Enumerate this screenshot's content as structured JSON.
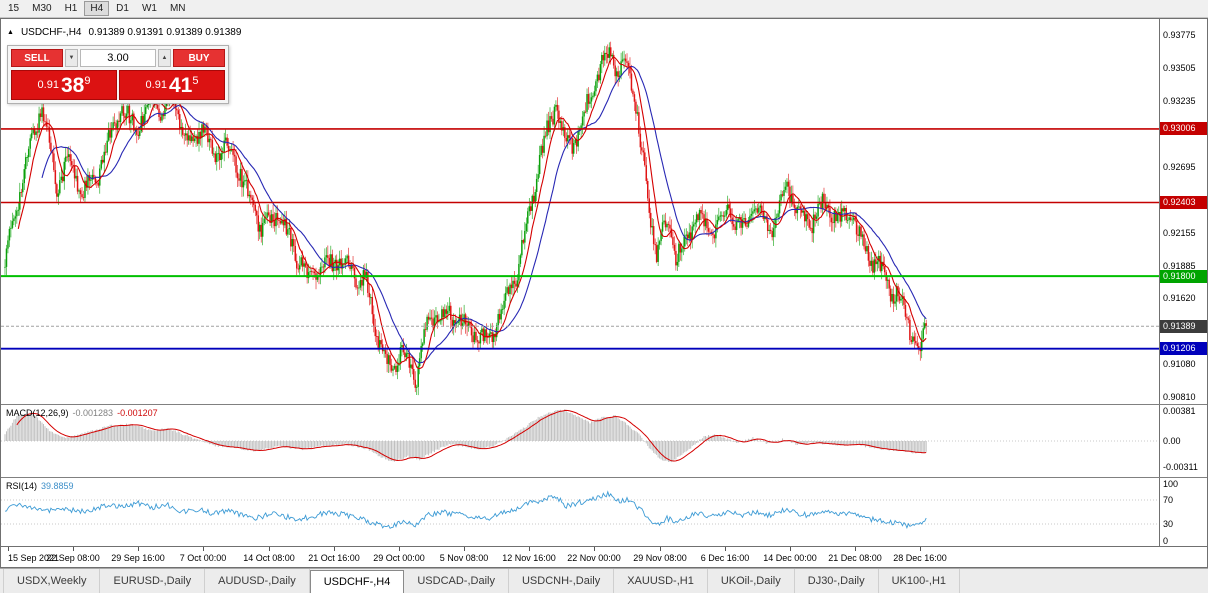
{
  "toolbar": {
    "timeframes": [
      {
        "label": "15",
        "active": false
      },
      {
        "label": "M30",
        "active": false
      },
      {
        "label": "H1",
        "active": false
      },
      {
        "label": "H4",
        "active": true
      },
      {
        "label": "D1",
        "active": false
      },
      {
        "label": "W1",
        "active": false
      },
      {
        "label": "MN",
        "active": false
      }
    ]
  },
  "chart_header": {
    "symbol_title": "USDCHF-,H4",
    "ohlc": "0.91389 0.91391 0.91389 0.91389"
  },
  "trade_panel": {
    "sell_label": "SELL",
    "buy_label": "BUY",
    "volume": "3.00",
    "sell_price_main": "0.91",
    "sell_price_pips": "38",
    "sell_price_sup": "9",
    "buy_price_main": "0.91",
    "buy_price_pips": "41",
    "buy_price_sup": "5"
  },
  "macd_panel": {
    "name": "MACD(12,26,9)",
    "main_value": "-0.001283",
    "signal_value": "-0.001207"
  },
  "rsi_panel": {
    "name": "RSI(14)",
    "value": "39.8859"
  },
  "tabs": [
    {
      "label": "USDX,Weekly",
      "active": false
    },
    {
      "label": "EURUSD-,Daily",
      "active": false
    },
    {
      "label": "AUDUSD-,Daily",
      "active": false
    },
    {
      "label": "USDCHF-,H4",
      "active": true
    },
    {
      "label": "USDCAD-,Daily",
      "active": false
    },
    {
      "label": "USDCNH-,Daily",
      "active": false
    },
    {
      "label": "XAUUSD-,H1",
      "active": false
    },
    {
      "label": "UKOil-,Daily",
      "active": false
    },
    {
      "label": "DJ30-,Daily",
      "active": false
    },
    {
      "label": "UK100-,H1",
      "active": false
    }
  ],
  "chart_data": {
    "type": "candlestick",
    "symbol": "USDCHF-",
    "timeframe": "H4",
    "current_price": 0.91389,
    "bars": 623,
    "y_ticks": [
      "0.93775",
      "0.93505",
      "0.93235",
      "0.92695",
      "0.92155",
      "0.91885",
      "0.91620",
      "0.91080",
      "0.90810"
    ],
    "price_badges": [
      {
        "text": "0.93006",
        "bg": "#c40000"
      },
      {
        "text": "0.92403",
        "bg": "#c40000"
      },
      {
        "text": "0.91800",
        "bg": "#00a400"
      },
      {
        "text": "0.91389",
        "bg": "#3c3c3c"
      },
      {
        "text": "0.91206",
        "bg": "#0000bb"
      }
    ],
    "h_lines": [
      {
        "price": 0.93006,
        "color": "#c40000",
        "width": 1.6,
        "dash": ""
      },
      {
        "price": 0.92403,
        "color": "#c40000",
        "width": 1.6,
        "dash": ""
      },
      {
        "price": 0.918,
        "color": "#00c000",
        "width": 2,
        "dash": ""
      },
      {
        "price": 0.91206,
        "color": "#0000bb",
        "width": 1.8,
        "dash": ""
      },
      {
        "price": 0.91389,
        "color": "#a0a0a0",
        "width": 1,
        "dash": "3,2"
      }
    ],
    "x_labels": [
      {
        "bar": 2,
        "label": "15 Sep 2021"
      },
      {
        "bar": 46,
        "label": "22 Sep 08:00"
      },
      {
        "bar": 90,
        "label": "29 Sep 16:00"
      },
      {
        "bar": 134,
        "label": "7 Oct 00:00"
      },
      {
        "bar": 178,
        "label": "14 Oct 08:00"
      },
      {
        "bar": 222,
        "label": "21 Oct 16:00"
      },
      {
        "bar": 266,
        "label": "29 Oct 00:00"
      },
      {
        "bar": 310,
        "label": "5 Nov 08:00"
      },
      {
        "bar": 354,
        "label": "12 Nov 16:00"
      },
      {
        "bar": 398,
        "label": "22 Nov 00:00"
      },
      {
        "bar": 442,
        "label": "29 Nov 08:00"
      },
      {
        "bar": 486,
        "label": "6 Dec 16:00"
      },
      {
        "bar": 530,
        "label": "14 Dec 00:00"
      },
      {
        "bar": 574,
        "label": "21 Dec 08:00"
      },
      {
        "bar": 618,
        "label": "28 Dec 16:00"
      }
    ],
    "price_path": [
      [
        0,
        0.919
      ],
      [
        8,
        0.924
      ],
      [
        18,
        0.929
      ],
      [
        25,
        0.932
      ],
      [
        35,
        0.9255
      ],
      [
        42,
        0.9275
      ],
      [
        52,
        0.925
      ],
      [
        62,
        0.9258
      ],
      [
        69,
        0.929
      ],
      [
        79,
        0.9315
      ],
      [
        89,
        0.93
      ],
      [
        99,
        0.933
      ],
      [
        106,
        0.931
      ],
      [
        113,
        0.933
      ],
      [
        123,
        0.929
      ],
      [
        133,
        0.93
      ],
      [
        143,
        0.928
      ],
      [
        153,
        0.9285
      ],
      [
        163,
        0.925
      ],
      [
        173,
        0.922
      ],
      [
        184,
        0.923
      ],
      [
        194,
        0.9205
      ],
      [
        204,
        0.918
      ],
      [
        214,
        0.9185
      ],
      [
        224,
        0.9195
      ],
      [
        234,
        0.9185
      ],
      [
        244,
        0.9175
      ],
      [
        251,
        0.913
      ],
      [
        261,
        0.9102
      ],
      [
        268,
        0.9122
      ],
      [
        277,
        0.9094
      ],
      [
        285,
        0.914
      ],
      [
        295,
        0.915
      ],
      [
        305,
        0.9145
      ],
      [
        315,
        0.9135
      ],
      [
        325,
        0.9125
      ],
      [
        335,
        0.915
      ],
      [
        345,
        0.918
      ],
      [
        355,
        0.924
      ],
      [
        366,
        0.93
      ],
      [
        372,
        0.932
      ],
      [
        379,
        0.9285
      ],
      [
        386,
        0.9295
      ],
      [
        393,
        0.932
      ],
      [
        399,
        0.934
      ],
      [
        408,
        0.9365
      ],
      [
        414,
        0.9345
      ],
      [
        420,
        0.9355
      ],
      [
        427,
        0.931
      ],
      [
        433,
        0.925
      ],
      [
        440,
        0.92
      ],
      [
        447,
        0.9225
      ],
      [
        453,
        0.9195
      ],
      [
        460,
        0.921
      ],
      [
        467,
        0.923
      ],
      [
        477,
        0.9215
      ],
      [
        487,
        0.9235
      ],
      [
        497,
        0.922
      ],
      [
        507,
        0.9235
      ],
      [
        517,
        0.922
      ],
      [
        528,
        0.9255
      ],
      [
        534,
        0.9235
      ],
      [
        544,
        0.9225
      ],
      [
        554,
        0.924
      ],
      [
        565,
        0.9225
      ],
      [
        571,
        0.9235
      ],
      [
        578,
        0.921
      ],
      [
        585,
        0.9195
      ],
      [
        592,
        0.9185
      ],
      [
        598,
        0.917
      ],
      [
        605,
        0.916
      ],
      [
        612,
        0.9135
      ],
      [
        618,
        0.912
      ],
      [
        622,
        0.91389
      ]
    ],
    "macd": {
      "ticks": [
        "0.00381",
        "0.00",
        "-0.00311"
      ],
      "path": [
        [
          0,
          0.0008
        ],
        [
          8,
          0.003
        ],
        [
          18,
          0.0035
        ],
        [
          30,
          0.0012
        ],
        [
          40,
          0.0004
        ],
        [
          55,
          0.001
        ],
        [
          70,
          0.0018
        ],
        [
          85,
          0.002
        ],
        [
          100,
          0.0012
        ],
        [
          110,
          0.0015
        ],
        [
          125,
          0.0005
        ],
        [
          140,
          -0.0005
        ],
        [
          155,
          -0.0008
        ],
        [
          170,
          -0.0012
        ],
        [
          185,
          -0.0006
        ],
        [
          200,
          -0.001
        ],
        [
          215,
          -0.0006
        ],
        [
          230,
          -0.0004
        ],
        [
          245,
          -0.001
        ],
        [
          255,
          -0.002
        ],
        [
          262,
          -0.0025
        ],
        [
          272,
          -0.0018
        ],
        [
          280,
          -0.0022
        ],
        [
          290,
          -0.0012
        ],
        [
          300,
          -0.0004
        ],
        [
          310,
          -0.0006
        ],
        [
          320,
          -0.001
        ],
        [
          330,
          -0.0006
        ],
        [
          340,
          0.0004
        ],
        [
          350,
          0.0015
        ],
        [
          360,
          0.0028
        ],
        [
          370,
          0.0035
        ],
        [
          378,
          0.0037
        ],
        [
          388,
          0.0028
        ],
        [
          395,
          0.0022
        ],
        [
          403,
          0.0028
        ],
        [
          412,
          0.003
        ],
        [
          420,
          0.002
        ],
        [
          428,
          0.0008
        ],
        [
          435,
          -0.0008
        ],
        [
          443,
          -0.0022
        ],
        [
          450,
          -0.0025
        ],
        [
          458,
          -0.0015
        ],
        [
          465,
          -0.0005
        ],
        [
          472,
          0.0005
        ],
        [
          480,
          0.0008
        ],
        [
          488,
          0.0002
        ],
        [
          495,
          -0.0002
        ],
        [
          505,
          0.0004
        ],
        [
          515,
          -0.0003
        ],
        [
          525,
          0.0002
        ],
        [
          535,
          -0.0004
        ],
        [
          545,
          -0.0002
        ],
        [
          555,
          -0.0003
        ],
        [
          565,
          -0.0005
        ],
        [
          575,
          -0.0004
        ],
        [
          585,
          -0.0008
        ],
        [
          595,
          -0.001
        ],
        [
          605,
          -0.0012
        ],
        [
          615,
          -0.0014
        ],
        [
          622,
          -0.0013
        ]
      ]
    },
    "rsi": {
      "ticks": [
        "100",
        "70",
        "30",
        "0"
      ],
      "levels": [
        70,
        30
      ],
      "path": [
        [
          0,
          55
        ],
        [
          10,
          62
        ],
        [
          20,
          58
        ],
        [
          30,
          52
        ],
        [
          40,
          57
        ],
        [
          50,
          50
        ],
        [
          60,
          55
        ],
        [
          70,
          62
        ],
        [
          80,
          60
        ],
        [
          90,
          65
        ],
        [
          100,
          58
        ],
        [
          110,
          62
        ],
        [
          120,
          50
        ],
        [
          130,
          55
        ],
        [
          140,
          48
        ],
        [
          150,
          52
        ],
        [
          160,
          45
        ],
        [
          170,
          40
        ],
        [
          180,
          48
        ],
        [
          190,
          42
        ],
        [
          200,
          38
        ],
        [
          210,
          45
        ],
        [
          220,
          50
        ],
        [
          230,
          45
        ],
        [
          240,
          40
        ],
        [
          250,
          30
        ],
        [
          260,
          25
        ],
        [
          270,
          35
        ],
        [
          277,
          28
        ],
        [
          285,
          45
        ],
        [
          295,
          50
        ],
        [
          305,
          46
        ],
        [
          315,
          42
        ],
        [
          325,
          38
        ],
        [
          335,
          48
        ],
        [
          345,
          55
        ],
        [
          355,
          65
        ],
        [
          366,
          72
        ],
        [
          372,
          75
        ],
        [
          379,
          60
        ],
        [
          386,
          64
        ],
        [
          393,
          70
        ],
        [
          399,
          74
        ],
        [
          408,
          80
        ],
        [
          414,
          68
        ],
        [
          420,
          72
        ],
        [
          427,
          58
        ],
        [
          433,
          45
        ],
        [
          440,
          28
        ],
        [
          447,
          40
        ],
        [
          453,
          33
        ],
        [
          460,
          40
        ],
        [
          467,
          48
        ],
        [
          477,
          43
        ],
        [
          487,
          50
        ],
        [
          497,
          45
        ],
        [
          507,
          50
        ],
        [
          517,
          44
        ],
        [
          528,
          55
        ],
        [
          534,
          47
        ],
        [
          544,
          44
        ],
        [
          554,
          50
        ],
        [
          565,
          45
        ],
        [
          571,
          49
        ],
        [
          578,
          42
        ],
        [
          585,
          38
        ],
        [
          592,
          35
        ],
        [
          598,
          32
        ],
        [
          605,
          30
        ],
        [
          612,
          25
        ],
        [
          618,
          28
        ],
        [
          622,
          39.9
        ]
      ]
    },
    "colors": {
      "up": "#0ba00b",
      "down": "#e01414",
      "ma_fast": "#d40000",
      "ma_slow": "#2828b4",
      "macd_hist": "#c0c0c0",
      "macd_signal": "#d40000",
      "rsi_line": "#3d9bd5"
    }
  }
}
